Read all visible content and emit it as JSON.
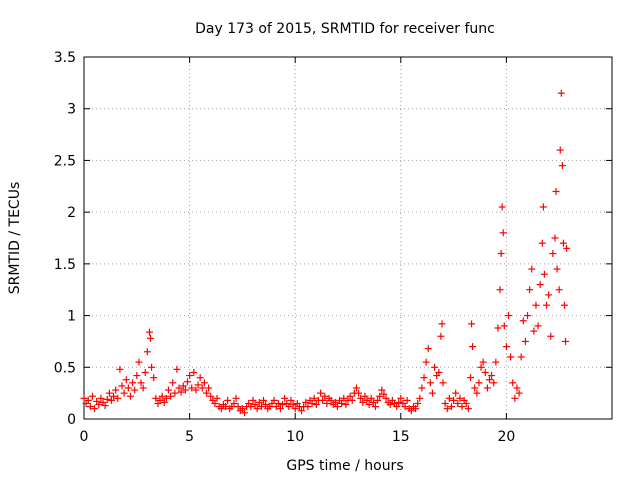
{
  "chart_data": {
    "type": "scatter",
    "title": "Day 173 of 2015, SRMTID for receiver func",
    "xlabel": "GPS time / hours",
    "ylabel": "SRMTID / TECUs",
    "xlim": [
      0,
      25
    ],
    "ylim": [
      0,
      3.5
    ],
    "xticks": [
      0,
      5,
      10,
      15,
      20
    ],
    "yticks": [
      0,
      0.5,
      1,
      1.5,
      2,
      2.5,
      3,
      3.5
    ],
    "ytick_labels": [
      "0",
      "0.5",
      "1",
      "1.5",
      "2",
      "2.5",
      "3",
      "3.5"
    ],
    "grid": true,
    "marker": "+",
    "series_color": "#ff0000",
    "series": [
      {
        "name": "SRMTID",
        "points": [
          [
            0.0,
            0.2
          ],
          [
            0.1,
            0.15
          ],
          [
            0.2,
            0.18
          ],
          [
            0.3,
            0.12
          ],
          [
            0.4,
            0.22
          ],
          [
            0.5,
            0.1
          ],
          [
            0.6,
            0.17
          ],
          [
            0.7,
            0.14
          ],
          [
            0.8,
            0.2
          ],
          [
            0.9,
            0.16
          ],
          [
            1.0,
            0.13
          ],
          [
            1.1,
            0.19
          ],
          [
            1.2,
            0.25
          ],
          [
            1.3,
            0.18
          ],
          [
            1.4,
            0.22
          ],
          [
            1.5,
            0.28
          ],
          [
            1.6,
            0.2
          ],
          [
            1.7,
            0.48
          ],
          [
            1.8,
            0.32
          ],
          [
            1.9,
            0.25
          ],
          [
            2.0,
            0.38
          ],
          [
            2.1,
            0.3
          ],
          [
            2.2,
            0.22
          ],
          [
            2.3,
            0.35
          ],
          [
            2.4,
            0.28
          ],
          [
            2.5,
            0.42
          ],
          [
            2.6,
            0.55
          ],
          [
            2.7,
            0.35
          ],
          [
            2.8,
            0.3
          ],
          [
            2.9,
            0.45
          ],
          [
            3.0,
            0.65
          ],
          [
            3.1,
            0.84
          ],
          [
            3.15,
            0.78
          ],
          [
            3.2,
            0.5
          ],
          [
            3.3,
            0.4
          ],
          [
            3.4,
            0.2
          ],
          [
            3.5,
            0.15
          ],
          [
            3.6,
            0.18
          ],
          [
            3.7,
            0.22
          ],
          [
            3.8,
            0.16
          ],
          [
            3.9,
            0.2
          ],
          [
            4.0,
            0.28
          ],
          [
            4.1,
            0.22
          ],
          [
            4.2,
            0.35
          ],
          [
            4.3,
            0.25
          ],
          [
            4.4,
            0.48
          ],
          [
            4.5,
            0.3
          ],
          [
            4.6,
            0.26
          ],
          [
            4.7,
            0.32
          ],
          [
            4.8,
            0.28
          ],
          [
            4.9,
            0.36
          ],
          [
            5.0,
            0.42
          ],
          [
            5.1,
            0.3
          ],
          [
            5.2,
            0.45
          ],
          [
            5.3,
            0.28
          ],
          [
            5.4,
            0.33
          ],
          [
            5.5,
            0.4
          ],
          [
            5.6,
            0.3
          ],
          [
            5.7,
            0.35
          ],
          [
            5.8,
            0.25
          ],
          [
            5.9,
            0.3
          ],
          [
            6.0,
            0.22
          ],
          [
            6.1,
            0.18
          ],
          [
            6.2,
            0.15
          ],
          [
            6.3,
            0.2
          ],
          [
            6.4,
            0.12
          ],
          [
            6.5,
            0.1
          ],
          [
            6.6,
            0.14
          ],
          [
            6.7,
            0.12
          ],
          [
            6.8,
            0.18
          ],
          [
            6.9,
            0.1
          ],
          [
            7.0,
            0.12
          ],
          [
            7.1,
            0.15
          ],
          [
            7.2,
            0.2
          ],
          [
            7.3,
            0.12
          ],
          [
            7.4,
            0.08
          ],
          [
            7.5,
            0.1
          ],
          [
            7.6,
            0.06
          ],
          [
            7.7,
            0.12
          ],
          [
            7.8,
            0.15
          ],
          [
            7.9,
            0.12
          ],
          [
            8.0,
            0.18
          ],
          [
            8.1,
            0.14
          ],
          [
            8.2,
            0.1
          ],
          [
            8.3,
            0.16
          ],
          [
            8.4,
            0.12
          ],
          [
            8.5,
            0.18
          ],
          [
            8.6,
            0.14
          ],
          [
            8.7,
            0.1
          ],
          [
            8.8,
            0.12
          ],
          [
            8.9,
            0.15
          ],
          [
            9.0,
            0.18
          ],
          [
            9.1,
            0.12
          ],
          [
            9.2,
            0.15
          ],
          [
            9.3,
            0.1
          ],
          [
            9.4,
            0.14
          ],
          [
            9.5,
            0.2
          ],
          [
            9.6,
            0.15
          ],
          [
            9.7,
            0.12
          ],
          [
            9.8,
            0.18
          ],
          [
            9.9,
            0.14
          ],
          [
            10.0,
            0.1
          ],
          [
            10.1,
            0.15
          ],
          [
            10.2,
            0.12
          ],
          [
            10.3,
            0.08
          ],
          [
            10.4,
            0.12
          ],
          [
            10.5,
            0.16
          ],
          [
            10.6,
            0.12
          ],
          [
            10.7,
            0.18
          ],
          [
            10.8,
            0.15
          ],
          [
            10.9,
            0.2
          ],
          [
            11.0,
            0.14
          ],
          [
            11.1,
            0.18
          ],
          [
            11.2,
            0.25
          ],
          [
            11.3,
            0.18
          ],
          [
            11.4,
            0.22
          ],
          [
            11.5,
            0.15
          ],
          [
            11.6,
            0.2
          ],
          [
            11.7,
            0.18
          ],
          [
            11.8,
            0.14
          ],
          [
            11.9,
            0.16
          ],
          [
            12.0,
            0.12
          ],
          [
            12.1,
            0.18
          ],
          [
            12.2,
            0.15
          ],
          [
            12.3,
            0.2
          ],
          [
            12.4,
            0.14
          ],
          [
            12.5,
            0.18
          ],
          [
            12.6,
            0.22
          ],
          [
            12.7,
            0.18
          ],
          [
            12.8,
            0.25
          ],
          [
            12.9,
            0.3
          ],
          [
            13.0,
            0.25
          ],
          [
            13.1,
            0.2
          ],
          [
            13.2,
            0.16
          ],
          [
            13.3,
            0.22
          ],
          [
            13.4,
            0.18
          ],
          [
            13.5,
            0.14
          ],
          [
            13.6,
            0.2
          ],
          [
            13.7,
            0.16
          ],
          [
            13.8,
            0.12
          ],
          [
            13.9,
            0.18
          ],
          [
            14.0,
            0.22
          ],
          [
            14.1,
            0.28
          ],
          [
            14.2,
            0.24
          ],
          [
            14.3,
            0.2
          ],
          [
            14.4,
            0.16
          ],
          [
            14.5,
            0.14
          ],
          [
            14.6,
            0.18
          ],
          [
            14.7,
            0.15
          ],
          [
            14.8,
            0.12
          ],
          [
            14.9,
            0.16
          ],
          [
            15.0,
            0.2
          ],
          [
            15.1,
            0.15
          ],
          [
            15.2,
            0.12
          ],
          [
            15.3,
            0.18
          ],
          [
            15.4,
            0.1
          ],
          [
            15.5,
            0.08
          ],
          [
            15.6,
            0.12
          ],
          [
            15.7,
            0.1
          ],
          [
            15.8,
            0.15
          ],
          [
            15.9,
            0.2
          ],
          [
            16.0,
            0.3
          ],
          [
            16.1,
            0.4
          ],
          [
            16.2,
            0.55
          ],
          [
            16.3,
            0.68
          ],
          [
            16.4,
            0.35
          ],
          [
            16.5,
            0.25
          ],
          [
            16.6,
            0.5
          ],
          [
            16.7,
            0.42
          ],
          [
            16.8,
            0.45
          ],
          [
            16.9,
            0.8
          ],
          [
            16.95,
            0.92
          ],
          [
            17.0,
            0.35
          ],
          [
            17.1,
            0.15
          ],
          [
            17.2,
            0.1
          ],
          [
            17.3,
            0.2
          ],
          [
            17.4,
            0.12
          ],
          [
            17.5,
            0.18
          ],
          [
            17.6,
            0.25
          ],
          [
            17.7,
            0.15
          ],
          [
            17.8,
            0.2
          ],
          [
            17.9,
            0.12
          ],
          [
            18.0,
            0.18
          ],
          [
            18.1,
            0.15
          ],
          [
            18.2,
            0.1
          ],
          [
            18.3,
            0.4
          ],
          [
            18.35,
            0.92
          ],
          [
            18.4,
            0.7
          ],
          [
            18.5,
            0.3
          ],
          [
            18.6,
            0.25
          ],
          [
            18.7,
            0.35
          ],
          [
            18.8,
            0.5
          ],
          [
            18.9,
            0.55
          ],
          [
            19.0,
            0.45
          ],
          [
            19.1,
            0.3
          ],
          [
            19.2,
            0.38
          ],
          [
            19.3,
            0.42
          ],
          [
            19.4,
            0.35
          ],
          [
            19.5,
            0.55
          ],
          [
            19.6,
            0.88
          ],
          [
            19.7,
            1.25
          ],
          [
            19.75,
            1.6
          ],
          [
            19.8,
            2.05
          ],
          [
            19.85,
            1.8
          ],
          [
            19.9,
            0.9
          ],
          [
            20.0,
            0.7
          ],
          [
            20.1,
            1.0
          ],
          [
            20.2,
            0.6
          ],
          [
            20.3,
            0.35
          ],
          [
            20.4,
            0.2
          ],
          [
            20.5,
            0.3
          ],
          [
            20.6,
            0.25
          ],
          [
            20.7,
            0.6
          ],
          [
            20.8,
            0.95
          ],
          [
            20.9,
            0.75
          ],
          [
            21.0,
            1.0
          ],
          [
            21.1,
            1.25
          ],
          [
            21.2,
            1.45
          ],
          [
            21.3,
            0.85
          ],
          [
            21.4,
            1.1
          ],
          [
            21.5,
            0.9
          ],
          [
            21.6,
            1.3
          ],
          [
            21.7,
            1.7
          ],
          [
            21.75,
            2.05
          ],
          [
            21.8,
            1.4
          ],
          [
            21.9,
            1.1
          ],
          [
            22.0,
            1.2
          ],
          [
            22.1,
            0.8
          ],
          [
            22.2,
            1.6
          ],
          [
            22.3,
            1.75
          ],
          [
            22.35,
            2.2
          ],
          [
            22.4,
            1.45
          ],
          [
            22.5,
            1.25
          ],
          [
            22.55,
            2.6
          ],
          [
            22.6,
            3.15
          ],
          [
            22.65,
            2.45
          ],
          [
            22.7,
            1.7
          ],
          [
            22.75,
            1.1
          ],
          [
            22.8,
            0.75
          ],
          [
            22.85,
            1.65
          ]
        ]
      }
    ]
  }
}
